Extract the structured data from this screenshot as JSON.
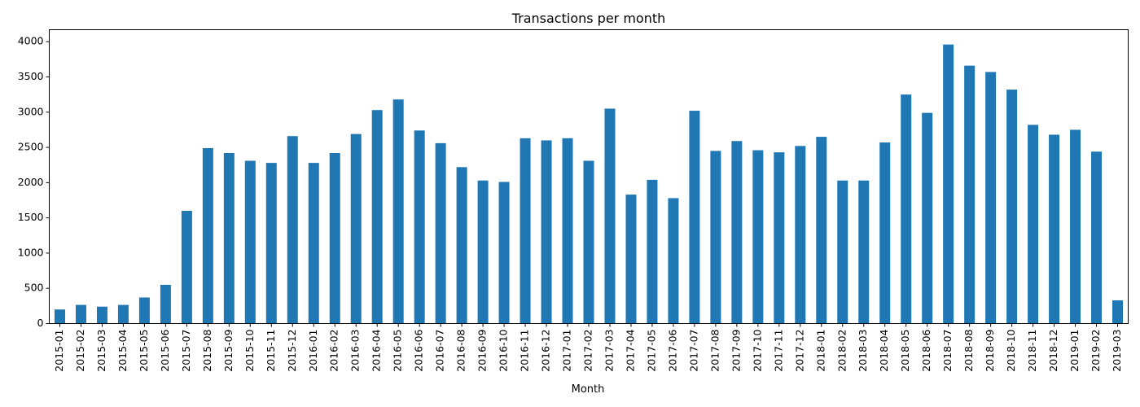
{
  "chart_data": {
    "type": "bar",
    "title": "Transactions per month",
    "xlabel": "Month",
    "ylabel": "",
    "ylim": [
      0,
      4170
    ],
    "yticks": [
      0,
      500,
      1000,
      1500,
      2000,
      2500,
      3000,
      3500,
      4000
    ],
    "grid": false,
    "legend": "none",
    "bar_color": "#1f77b4",
    "categories": [
      "2015-01",
      "2015-02",
      "2015-03",
      "2015-04",
      "2015-05",
      "2015-06",
      "2015-07",
      "2015-08",
      "2015-09",
      "2015-10",
      "2015-11",
      "2015-12",
      "2016-01",
      "2016-02",
      "2016-03",
      "2016-04",
      "2016-05",
      "2016-06",
      "2016-07",
      "2016-08",
      "2016-09",
      "2016-10",
      "2016-11",
      "2016-12",
      "2017-01",
      "2017-02",
      "2017-03",
      "2017-04",
      "2017-05",
      "2017-06",
      "2017-07",
      "2017-08",
      "2017-09",
      "2017-10",
      "2017-11",
      "2017-12",
      "2018-01",
      "2018-02",
      "2018-03",
      "2018-04",
      "2018-05",
      "2018-06",
      "2018-07",
      "2018-08",
      "2018-09",
      "2018-10",
      "2018-11",
      "2018-12",
      "2019-01",
      "2019-02",
      "2019-03"
    ],
    "values": [
      200,
      265,
      240,
      265,
      370,
      550,
      1600,
      2490,
      2420,
      2310,
      2280,
      2660,
      2280,
      2420,
      2690,
      3030,
      3180,
      2740,
      2560,
      2220,
      2030,
      2010,
      2630,
      2600,
      2630,
      2310,
      3050,
      1830,
      2040,
      1780,
      3020,
      2450,
      2590,
      2460,
      2430,
      2520,
      2650,
      2030,
      2030,
      2570,
      3250,
      2990,
      3960,
      3660,
      3570,
      3320,
      2820,
      2680,
      2750,
      2440,
      330
    ]
  }
}
